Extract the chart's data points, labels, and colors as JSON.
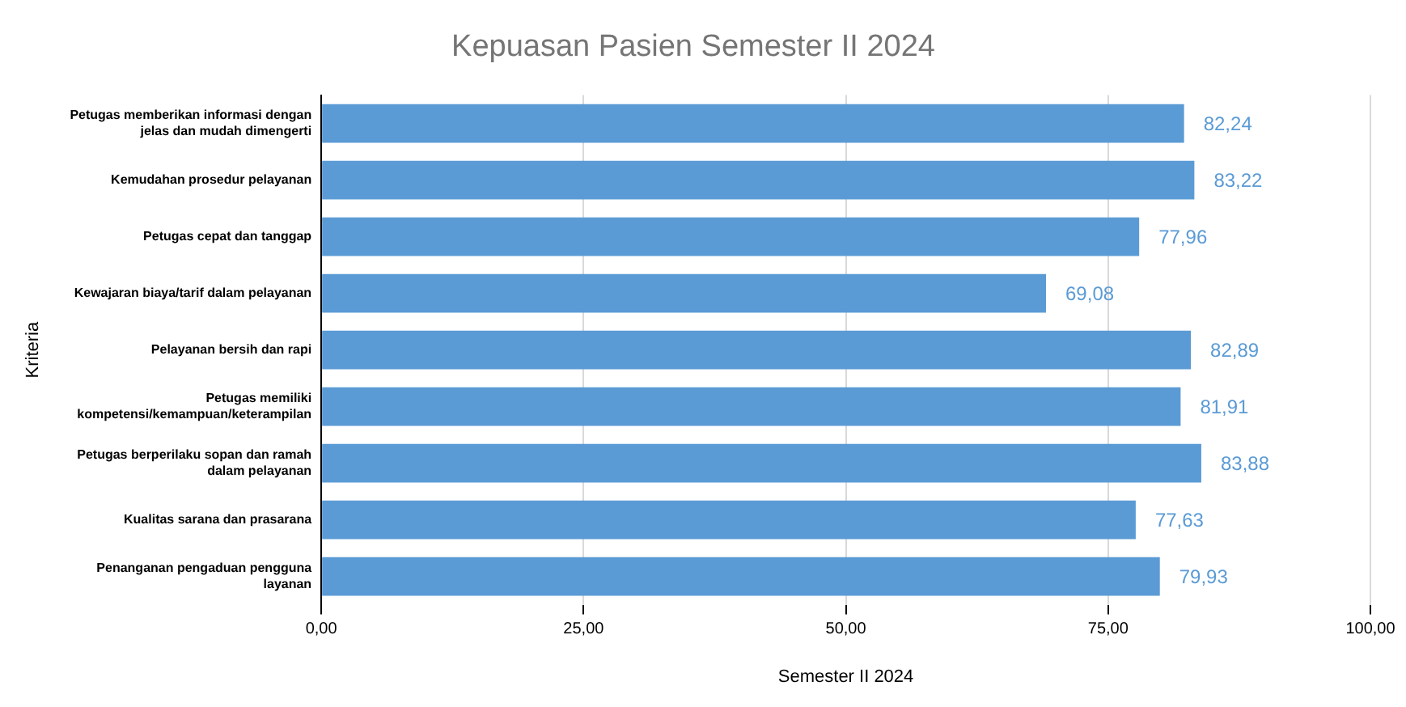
{
  "chart_data": {
    "type": "bar",
    "orientation": "horizontal",
    "title": "Kepuasan Pasien Semester II 2024",
    "xlabel": "Semester II 2024",
    "ylabel": "Kriteria",
    "categories": [
      "Petugas memberikan informasi dengan jelas dan mudah dimengerti",
      "Kemudahan prosedur pelayanan",
      "Petugas cepat dan tanggap",
      "Kewajaran biaya/tarif dalam pelayanan",
      "Pelayanan bersih dan rapi",
      "Petugas memiliki kompetensi/kemampuan/keterampilan",
      "Petugas berperilaku sopan dan ramah dalam pelayanan",
      "Kualitas sarana dan prasarana",
      "Penanganan pengaduan pengguna layanan"
    ],
    "values": [
      82.24,
      83.22,
      77.96,
      69.08,
      82.89,
      81.91,
      83.88,
      77.63,
      79.93
    ],
    "value_labels": [
      "82,24",
      "83,22",
      "77,96",
      "69,08",
      "82,89",
      "81,91",
      "83,88",
      "77,63",
      "79,93"
    ],
    "color": "#5b9bd5",
    "xlim": [
      0,
      100
    ],
    "xticks": [
      {
        "value": 0,
        "label": "0,00"
      },
      {
        "value": 25,
        "label": "25,00"
      },
      {
        "value": 50,
        "label": "50,00"
      },
      {
        "value": 75,
        "label": "75,00"
      },
      {
        "value": 100,
        "label": "100,00"
      }
    ],
    "grid": "x",
    "legend": false
  }
}
